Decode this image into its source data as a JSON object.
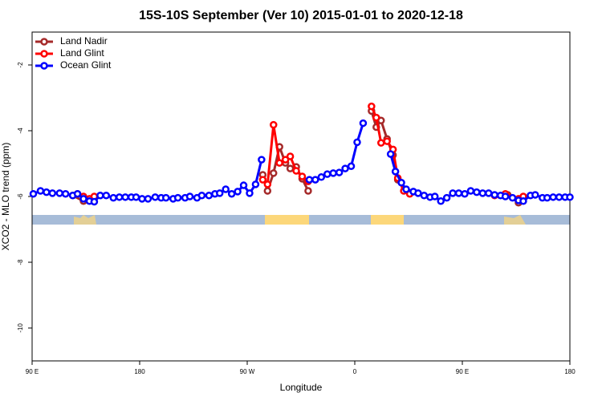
{
  "chart_data": {
    "type": "line",
    "title": "15S-10S September (Ver 10)   2015-01-01 to 2020-12-18",
    "x_label": "Longitude",
    "y_label": "XCO2 - MLO trend (ppm)",
    "xlim": [
      90,
      540
    ],
    "ylim": [
      -11,
      -1
    ],
    "xticks": [
      {
        "value": 90,
        "label": "90 E"
      },
      180,
      {
        "value": 270,
        "label": "90 W"
      },
      {
        "value": 360,
        "label": "0"
      },
      {
        "value": 450,
        "label": "90 E"
      },
      {
        "value": 540,
        "label": "180"
      }
    ],
    "yticks": [
      -2,
      -4,
      -6,
      -8,
      -10
    ],
    "legend": "upper left",
    "series": [
      {
        "name": "Land Nadir",
        "color": "#a52a2a",
        "x": [
          124,
          133,
          200,
          283,
          287,
          292,
          297,
          302,
          306,
          311,
          316,
          321,
          350,
          374,
          378,
          382,
          387,
          392,
          396,
          450,
          488,
          497
        ],
        "values": [
          -5.97,
          -6.14,
          null,
          -5.34,
          -5.83,
          -5.29,
          -4.49,
          -4.98,
          -5.15,
          -5.1,
          -5.46,
          -5.83,
          null,
          -3.4,
          -3.89,
          -3.69,
          -4.25,
          -4.74,
          -5.49,
          null,
          -5.95,
          -6.19
        ]
      },
      {
        "name": "Land Glint",
        "color": "#ff0000",
        "x": [
          128,
          133,
          138,
          142,
          200,
          283,
          287,
          292,
          297,
          302,
          306,
          311,
          316,
          321,
          350,
          374,
          378,
          382,
          387,
          392,
          396,
          401,
          406,
          450,
          477,
          486,
          497,
          501
        ],
        "values": [
          -5.92,
          -6.0,
          -6.07,
          -6.0,
          null,
          -5.49,
          -5.63,
          -3.82,
          -4.98,
          -4.88,
          -4.78,
          -5.22,
          -5.39,
          -5.54,
          null,
          -3.26,
          -3.6,
          -4.37,
          -4.32,
          -4.57,
          -5.44,
          -5.83,
          -5.92,
          null,
          -5.97,
          -5.92,
          -6.07,
          -6.0
        ]
      },
      {
        "name": "Ocean Glint",
        "color": "#0000ff",
        "x": [
          91,
          97,
          102,
          107,
          113,
          118,
          124,
          128,
          133,
          138,
          142,
          147,
          152,
          158,
          163,
          168,
          173,
          177,
          182,
          187,
          193,
          198,
          202,
          208,
          212,
          218,
          222,
          228,
          232,
          238,
          243,
          247,
          252,
          257,
          262,
          267,
          272,
          277,
          282,
          300,
          322,
          327,
          332,
          337,
          342,
          347,
          352,
          357,
          362,
          367,
          378,
          390,
          394,
          399,
          403,
          409,
          413,
          418,
          423,
          427,
          432,
          437,
          442,
          447,
          452,
          457,
          462,
          467,
          472,
          477,
          482,
          486,
          492,
          497,
          501,
          507,
          511,
          517,
          521,
          526,
          531,
          536,
          540
        ],
        "values": [
          -5.92,
          -5.83,
          -5.87,
          -5.9,
          -5.9,
          -5.92,
          -5.97,
          -5.92,
          -6.07,
          -6.14,
          -6.16,
          -5.97,
          -5.97,
          -6.04,
          -6.02,
          -6.02,
          -6.02,
          -6.02,
          -6.07,
          -6.07,
          -6.02,
          -6.04,
          -6.04,
          -6.07,
          -6.04,
          -6.04,
          -6.0,
          -6.04,
          -5.97,
          -5.97,
          -5.92,
          -5.9,
          -5.78,
          -5.92,
          -5.85,
          -5.66,
          -5.9,
          -5.63,
          -4.88,
          null,
          -5.49,
          -5.49,
          -5.41,
          -5.32,
          -5.29,
          -5.27,
          -5.15,
          -5.08,
          -4.35,
          -3.77,
          null,
          -4.71,
          -5.24,
          -5.58,
          -5.78,
          -5.85,
          -5.9,
          -5.97,
          -6.02,
          -6.0,
          -6.14,
          -6.04,
          -5.9,
          -5.9,
          -5.92,
          -5.83,
          -5.87,
          -5.9,
          -5.9,
          -5.95,
          -5.97,
          -6.0,
          -6.04,
          -6.12,
          -6.14,
          -5.97,
          -5.95,
          -6.04,
          -6.04,
          -6.02,
          -6.02,
          -6.02,
          -6.02
        ]
      }
    ]
  }
}
